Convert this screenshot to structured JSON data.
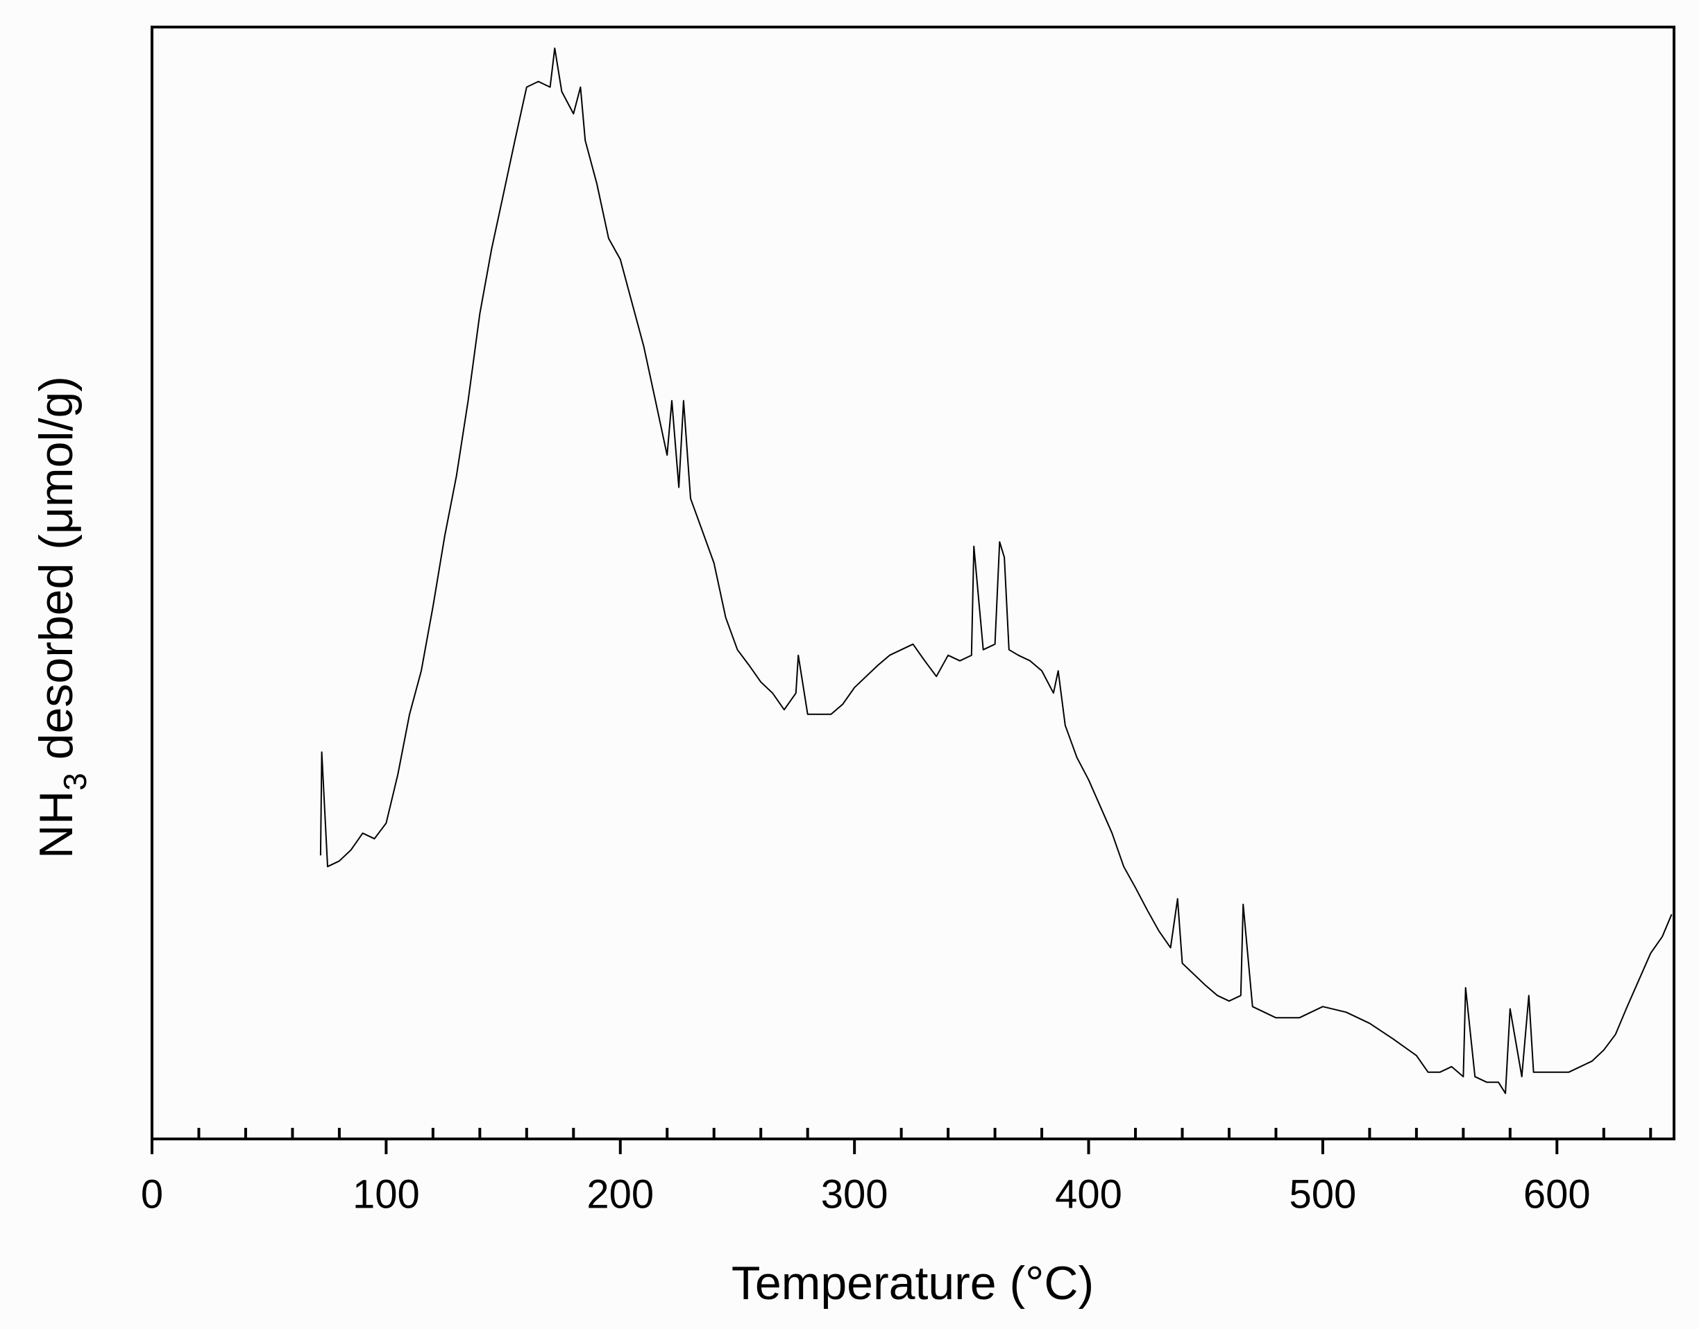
{
  "chart_data": {
    "type": "line",
    "x_label": "Temperature (°C)",
    "y_label": [
      "NH",
      "3",
      " desorbed (μmol/g)"
    ],
    "xlim": [
      0,
      650
    ],
    "ylim": [
      0,
      100
    ],
    "xticks": [
      0,
      100,
      200,
      300,
      400,
      500,
      600
    ],
    "xminorticks": [
      20,
      40,
      60,
      80,
      120,
      140,
      160,
      180,
      220,
      240,
      260,
      280,
      320,
      340,
      360,
      380,
      420,
      440,
      460,
      480,
      520,
      540,
      560,
      580,
      620,
      640
    ],
    "color": "#000000",
    "x": [
      72,
      72.5,
      75,
      80,
      85,
      90,
      95,
      100,
      105,
      110,
      115,
      120,
      125,
      130,
      135,
      140,
      145,
      150,
      155,
      160,
      165,
      170,
      172,
      175,
      180,
      183,
      185,
      190,
      195,
      200,
      205,
      210,
      215,
      220,
      222,
      225,
      227,
      230,
      235,
      240,
      245,
      250,
      255,
      260,
      265,
      270,
      275,
      276,
      280,
      285,
      290,
      295,
      300,
      305,
      310,
      315,
      320,
      325,
      330,
      335,
      340,
      345,
      350,
      351,
      355,
      360,
      362,
      364,
      366,
      370,
      375,
      380,
      385,
      387,
      390,
      395,
      400,
      405,
      410,
      415,
      420,
      425,
      430,
      435,
      438,
      440,
      445,
      450,
      455,
      460,
      465,
      466,
      470,
      480,
      490,
      500,
      510,
      520,
      530,
      540,
      545,
      550,
      555,
      560,
      561,
      565,
      570,
      575,
      578,
      580,
      585,
      588,
      590,
      595,
      600,
      605,
      610,
      615,
      620,
      625,
      630,
      635,
      640,
      645,
      649
    ],
    "values": [
      25.5,
      34.8,
      24.5,
      25.0,
      26.0,
      27.5,
      27.0,
      28.4,
      32.8,
      38.2,
      42.1,
      47.9,
      54.2,
      59.6,
      66.4,
      74.2,
      80.0,
      84.9,
      89.8,
      94.6,
      95.1,
      94.6,
      98.1,
      94.2,
      92.2,
      94.6,
      89.8,
      85.9,
      81.0,
      79.1,
      75.2,
      71.3,
      66.4,
      61.5,
      66.4,
      58.6,
      66.4,
      57.6,
      54.7,
      51.8,
      46.9,
      44.0,
      42.6,
      41.1,
      40.1,
      38.6,
      40.1,
      43.5,
      38.2,
      38.2,
      38.2,
      39.1,
      40.6,
      41.6,
      42.6,
      43.5,
      44.0,
      44.5,
      43.0,
      41.6,
      43.5,
      43.0,
      43.5,
      53.3,
      44.0,
      44.5,
      53.7,
      52.3,
      44.0,
      43.5,
      43.0,
      42.1,
      40.1,
      42.1,
      37.2,
      34.3,
      32.3,
      29.9,
      27.5,
      24.5,
      22.6,
      20.6,
      18.7,
      17.2,
      21.6,
      15.8,
      14.8,
      13.8,
      12.9,
      12.4,
      12.9,
      21.1,
      11.9,
      10.9,
      10.9,
      11.9,
      11.4,
      10.4,
      9.0,
      7.5,
      6.0,
      6.0,
      6.5,
      5.6,
      13.6,
      5.6,
      5.1,
      5.1,
      4.1,
      11.7,
      5.6,
      12.9,
      6.0,
      6.0,
      6.0,
      6.0,
      6.5,
      7.0,
      8.0,
      9.4,
      11.9,
      14.3,
      16.7,
      18.2,
      20.2
    ]
  }
}
